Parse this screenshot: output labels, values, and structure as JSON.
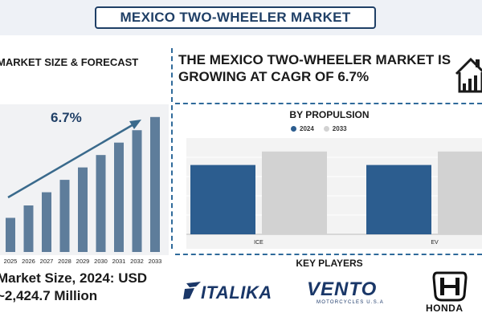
{
  "header": {
    "title": "MEXICO TWO-WHEELER MARKET"
  },
  "forecast": {
    "heading": "MARKET SIZE & FORECAST",
    "cagr_label": "6.7%"
  },
  "headline": "THE MEXICO TWO-WHEELER MARKET IS GROWING AT CAGR OF 6.7%",
  "market_size": {
    "line1": "Market Size, 2024: USD",
    "line2": "~2,424.7 Million"
  },
  "key_players": {
    "title": "KEY PLAYERS",
    "logos": [
      "ITALIKA",
      "VENTO",
      "MOTORCYCLES U.S.A",
      "HONDA"
    ]
  },
  "colors": {
    "navy": "#1f3f66",
    "bar_2024": "#2c5d8f",
    "bar_2033": "#d2d2d2",
    "forecast_bar": "#5e7d9b",
    "arrow": "#3a6a8c"
  },
  "icons": [
    "house-chart-icon",
    "trend-arrow-icon"
  ],
  "chart_data": [
    {
      "type": "bar",
      "title": "MARKET SIZE & FORECAST",
      "categories": [
        "2025",
        "2026",
        "2027",
        "2028",
        "2029",
        "2030",
        "2031",
        "2032",
        "2033"
      ],
      "values": [
        44,
        60,
        77,
        93,
        109,
        125,
        141,
        157,
        174
      ],
      "annotations": [
        "6.7%"
      ],
      "grid": false,
      "xlabel": "",
      "ylabel": ""
    },
    {
      "type": "bar",
      "title": "BY PROPULSION",
      "categories": [
        "ICE",
        "EV"
      ],
      "series": [
        {
          "name": "2024",
          "values": [
            0.72,
            0.72
          ]
        },
        {
          "name": "2033",
          "values": [
            0.86,
            0.86
          ]
        }
      ],
      "ylim": [
        0,
        1
      ],
      "grid": true,
      "legend": "top-center",
      "xlabel": "",
      "ylabel": ""
    }
  ]
}
